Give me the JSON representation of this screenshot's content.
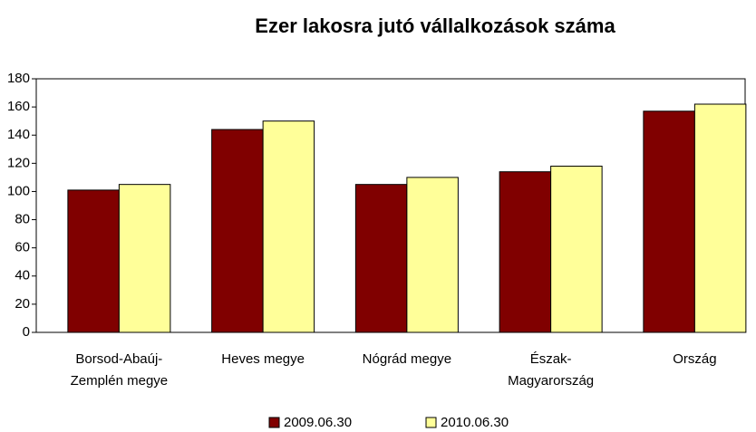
{
  "chart_data": {
    "type": "bar",
    "title": "Ezer lakosra jutó vállalkozások száma",
    "categories": [
      "Borsod-Abaúj-Zemplén megye",
      "Heves megye",
      "Nógrád megye",
      "Észak-Magyarország",
      "Ország"
    ],
    "series": [
      {
        "name": "2009.06.30",
        "color": "#800000",
        "values": [
          101,
          144,
          105,
          114,
          157
        ]
      },
      {
        "name": "2010.06.30",
        "color": "#ffff99",
        "values": [
          105,
          150,
          110,
          118,
          162
        ]
      }
    ],
    "ylim": [
      0,
      180
    ],
    "yticks": [
      0,
      20,
      40,
      60,
      80,
      100,
      120,
      140,
      160,
      180
    ],
    "grid": false
  }
}
